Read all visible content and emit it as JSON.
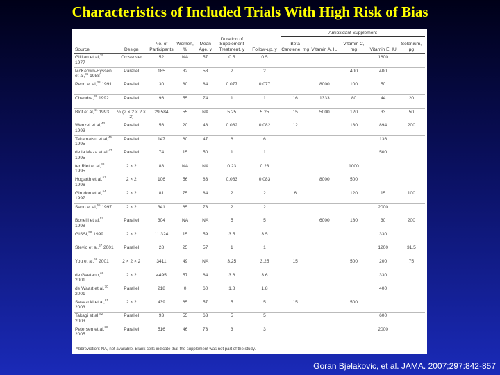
{
  "slide": {
    "title": "Characteristics of Included Trials With High Risk of Bias",
    "citation": "Goran Bjelakovic, et al. JAMA. 2007;297:842-857"
  },
  "table": {
    "group_header": "Antioxidant Supplement",
    "columns": [
      "Source",
      "Design",
      "No. of Participants",
      "Women, %",
      "Mean Age, y",
      "Duration of Supplement Treatment, y",
      "Follow-up, y",
      "Beta Carotene, mg",
      "Vitamin A, IU",
      "Vitamin C, mg",
      "Vitamin E, IU",
      "Selenium, μg"
    ],
    "rows": [
      {
        "source": {
          "name": "Gillilan et al,",
          "ref": "35",
          "year": "1977"
        },
        "cells": [
          "Crossover",
          "52",
          "NA",
          "57",
          "0.5",
          "0.5",
          null,
          null,
          null,
          "1600",
          null
        ]
      },
      {
        "source": {
          "name": "McKeown-Eyssen et al,",
          "ref": "36",
          "year": "1988"
        },
        "cells": [
          "Parallel",
          "185",
          "32",
          "58",
          "2",
          "2",
          null,
          null,
          "400",
          "400",
          null
        ]
      },
      {
        "source": {
          "name": "Penn et al,",
          "ref": "38",
          "year": "1991"
        },
        "cells": [
          "Parallel",
          "30",
          "80",
          "84",
          "0.077",
          "0.077",
          null,
          "8000",
          "100",
          "50",
          null
        ]
      },
      {
        "source": {
          "name": "Chandra,",
          "ref": "39",
          "year": "1992"
        },
        "cells": [
          "Parallel",
          "96",
          "55",
          "74",
          "1",
          "1",
          "16",
          "1333",
          "80",
          "44",
          "20"
        ]
      },
      {
        "source": {
          "name": "Blot et al,",
          "ref": "41",
          "year": "1993"
        },
        "cells": [
          "½ (2 × 2 × 2 × 2)",
          "29 584",
          "55",
          "NA",
          "5.25",
          "5.25",
          "15",
          "5000",
          "120",
          "33",
          "50"
        ]
      },
      {
        "source": {
          "name": "Wenzel et al,",
          "ref": "43",
          "year": "1993"
        },
        "cells": [
          "Parallel",
          "56",
          "20",
          "48",
          "0.082",
          "0.082",
          "12",
          null,
          "180",
          "894",
          "200"
        ]
      },
      {
        "source": {
          "name": "Takamatsu et al,",
          "ref": "45",
          "year": "1995"
        },
        "cells": [
          "Parallel",
          "147",
          "60",
          "47",
          "6",
          "6",
          null,
          null,
          null,
          "136",
          null
        ]
      },
      {
        "source": {
          "name": "de la Maza et al,",
          "ref": "47",
          "year": "1995"
        },
        "cells": [
          "Parallel",
          "74",
          "15",
          "50",
          "1",
          "1",
          null,
          null,
          null,
          "500",
          null
        ]
      },
      {
        "source": {
          "name": "ter Riet et al,",
          "ref": "48",
          "year": "1995"
        },
        "cells": [
          "2 × 2",
          "88",
          "NA",
          "NA",
          "0.23",
          "0.23",
          null,
          null,
          "1000",
          null,
          null
        ]
      },
      {
        "source": {
          "name": "Hogarth et al,",
          "ref": "51",
          "year": "1996"
        },
        "cells": [
          "2 × 2",
          "106",
          "56",
          "83",
          "0.083",
          "0.083",
          null,
          "8000",
          "500",
          null,
          null
        ]
      },
      {
        "source": {
          "name": "Girodon et al,",
          "ref": "54",
          "year": "1997"
        },
        "cells": [
          "2 × 2",
          "81",
          "75",
          "84",
          "2",
          "2",
          "6",
          null,
          "120",
          "15",
          "100"
        ]
      },
      {
        "source": {
          "name": "Sano et al,",
          "ref": "55",
          "year": "1997"
        },
        "cells": [
          "2 × 2",
          "341",
          "65",
          "73",
          "2",
          "2",
          null,
          null,
          null,
          "2000",
          null
        ]
      },
      {
        "source": {
          "name": "Bonelli et al,",
          "ref": "57",
          "year": "1998"
        },
        "cells": [
          "Parallel",
          "304",
          "NA",
          "NA",
          "5",
          "5",
          null,
          "6000",
          "180",
          "30",
          "200"
        ]
      },
      {
        "source": {
          "name": "GISSI,",
          "ref": "58",
          "year": "1999"
        },
        "cells": [
          "2 × 2",
          "11 324",
          "15",
          "59",
          "3.5",
          "3.5",
          null,
          null,
          null,
          "330",
          null
        ]
      },
      {
        "source": {
          "name": "Stevic et al,",
          "ref": "67",
          "year": "2001"
        },
        "cells": [
          "Parallel",
          "28",
          "25",
          "57",
          "1",
          "1",
          null,
          null,
          null,
          "1200",
          "31.5"
        ]
      },
      {
        "source": {
          "name": "You et al,",
          "ref": "68",
          "year": "2001"
        },
        "cells": [
          "2 × 2 × 2",
          "3411",
          "49",
          "NA",
          "3.25",
          "3.25",
          "15",
          null,
          "500",
          "200",
          "75"
        ]
      },
      {
        "source": {
          "name": "de Gaetano,",
          "ref": "69",
          "year": "2001"
        },
        "cells": [
          "2 × 2",
          "4495",
          "57",
          "64",
          "3.6",
          "3.6",
          null,
          null,
          null,
          "330",
          null
        ]
      },
      {
        "source": {
          "name": "de Waart et al,",
          "ref": "70",
          "year": "2001"
        },
        "cells": [
          "Parallel",
          "218",
          "0",
          "60",
          "1.8",
          "1.8",
          null,
          null,
          null,
          "400",
          null
        ]
      },
      {
        "source": {
          "name": "Sasazuki et al,",
          "ref": "81",
          "year": "2003"
        },
        "cells": [
          "2 × 2",
          "439",
          "65",
          "57",
          "5",
          "5",
          "15",
          null,
          "500",
          null,
          null
        ]
      },
      {
        "source": {
          "name": "Takagi et al,",
          "ref": "82",
          "year": "2003"
        },
        "cells": [
          "Parallel",
          "93",
          "55",
          "63",
          "5",
          "5",
          null,
          null,
          null,
          "600",
          null
        ]
      },
      {
        "source": {
          "name": "Petersen et al,",
          "ref": "88",
          "year": "2005"
        },
        "cells": [
          "Parallel",
          "516",
          "46",
          "73",
          "3",
          "3",
          null,
          null,
          null,
          "2000",
          null
        ]
      }
    ],
    "footnote": "Abbreviation: NA, not available. Blank cells indicate that the supplement was not part of the study."
  }
}
